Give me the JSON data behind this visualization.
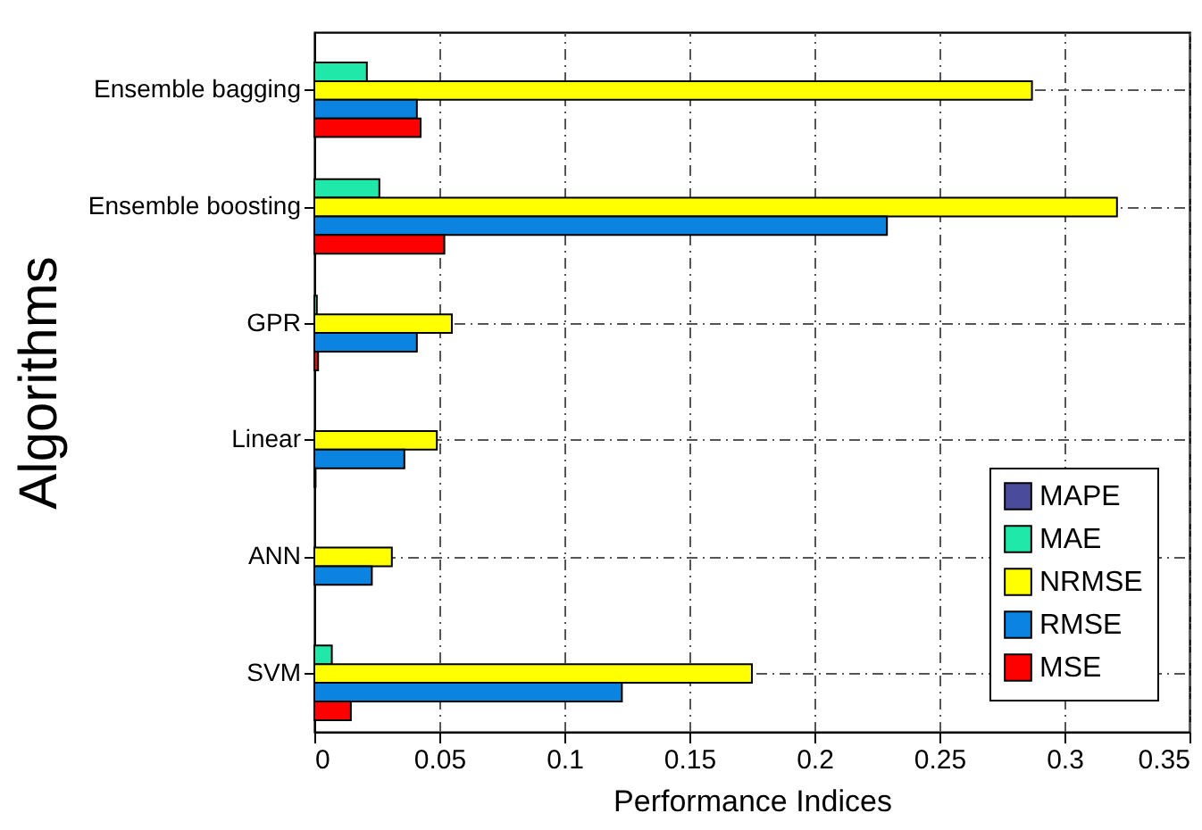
{
  "chart_data": {
    "type": "bar",
    "orientation": "horizontal",
    "xlabel": "Performance Indices",
    "ylabel": "Algorithms",
    "categories": [
      "Ensemble bagging",
      "Ensemble boosting",
      "GPR",
      "Linear",
      "ANN",
      "SVM"
    ],
    "series": [
      {
        "name": "MAPE",
        "color": "#4b4b9b",
        "values": [
          null,
          null,
          null,
          null,
          null,
          null
        ]
      },
      {
        "name": "MAE",
        "color": "#20e8a8",
        "values": [
          0.021,
          0.026,
          0.001,
          null,
          null,
          0.007
        ]
      },
      {
        "name": "NRMSE",
        "color": "#ffff00",
        "values": [
          0.287,
          0.321,
          0.055,
          0.049,
          0.031,
          0.175
        ]
      },
      {
        "name": "RMSE",
        "color": "#0a84e0",
        "values": [
          0.041,
          0.229,
          0.041,
          0.036,
          0.023,
          0.123
        ]
      },
      {
        "name": "MSE",
        "color": "#ff0000",
        "values": [
          0.0425,
          0.052,
          0.0015,
          0.0005,
          null,
          0.0146
        ]
      }
    ],
    "xlim": [
      0,
      0.35
    ],
    "xticks": [
      0,
      0.05,
      0.1,
      0.15,
      0.2,
      0.25,
      0.3,
      0.35
    ],
    "grid": true,
    "legend": "bottom right"
  }
}
